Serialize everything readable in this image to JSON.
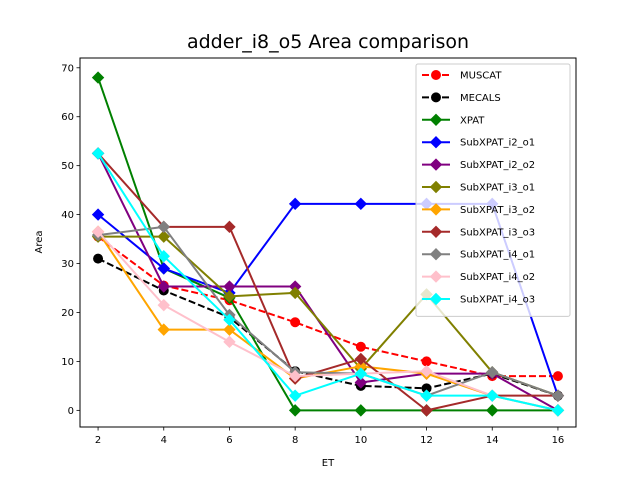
{
  "chart_data": {
    "type": "line",
    "title": "adder_i8_o5 Area comparison",
    "xlabel": "ET",
    "ylabel": "Area",
    "x": [
      2,
      4,
      6,
      8,
      10,
      12,
      14,
      16
    ],
    "xticks": [
      "2",
      "4",
      "6",
      "8",
      "10",
      "12",
      "14",
      "16"
    ],
    "yticks": [
      "0",
      "10",
      "20",
      "30",
      "40",
      "50",
      "60",
      "70"
    ],
    "xlim": [
      1.45,
      16.55
    ],
    "ylim": [
      -3.4,
      72.0
    ],
    "grid": false,
    "legend_position": "upper right",
    "series": [
      {
        "name": "MUSCAT",
        "color": "#ff0000",
        "dash": true,
        "marker": "circle",
        "values": [
          35.5,
          25.5,
          22.5,
          18,
          13,
          10,
          7,
          7
        ]
      },
      {
        "name": "MECALS",
        "color": "#000000",
        "dash": true,
        "marker": "circle",
        "values": [
          31,
          24.5,
          19,
          8,
          5,
          4.5,
          7.5,
          3
        ]
      },
      {
        "name": "XPAT",
        "color": "#008000",
        "dash": false,
        "marker": "diamond",
        "values": [
          68,
          29,
          23,
          0,
          0,
          0,
          0,
          0
        ]
      },
      {
        "name": "SubXPAT_i2_o1",
        "color": "#0000ff",
        "dash": false,
        "marker": "diamond",
        "values": [
          40,
          29,
          24,
          42.2,
          42.2,
          42.2,
          42.2,
          3
        ]
      },
      {
        "name": "SubXPAT_i2_o2",
        "color": "#800080",
        "dash": false,
        "marker": "diamond",
        "values": [
          52.5,
          25.3,
          25.3,
          25.3,
          5.7,
          7.5,
          7.5,
          0
        ]
      },
      {
        "name": "SubXPAT_i3_o1",
        "color": "#808000",
        "dash": false,
        "marker": "diamond",
        "values": [
          35.5,
          35.5,
          23.3,
          24,
          8.5,
          23.7,
          7.8,
          3
        ]
      },
      {
        "name": "SubXPAT_i3_o2",
        "color": "#ffa500",
        "dash": false,
        "marker": "diamond",
        "values": [
          36.5,
          16.5,
          16.5,
          6.5,
          9,
          7.5,
          3,
          0
        ]
      },
      {
        "name": "SubXPAT_i3_o3",
        "color": "#a52a2a",
        "dash": false,
        "marker": "diamond",
        "values": [
          52.5,
          37.5,
          37.5,
          6.5,
          10.5,
          0,
          3,
          3
        ]
      },
      {
        "name": "SubXPAT_i4_o1",
        "color": "#808080",
        "dash": false,
        "marker": "diamond",
        "values": [
          35.8,
          37.5,
          19.5,
          7.8,
          7.5,
          3,
          7.8,
          3
        ]
      },
      {
        "name": "SubXPAT_i4_o2",
        "color": "#ffc0cb",
        "dash": false,
        "marker": "diamond",
        "values": [
          36.5,
          21.5,
          14,
          7,
          7.5,
          8,
          3,
          0
        ]
      },
      {
        "name": "SubXPAT_i4_o3",
        "color": "#00ffff",
        "dash": false,
        "marker": "diamond",
        "values": [
          52.5,
          31.5,
          18.5,
          3,
          7.5,
          3,
          3,
          0
        ]
      }
    ]
  }
}
